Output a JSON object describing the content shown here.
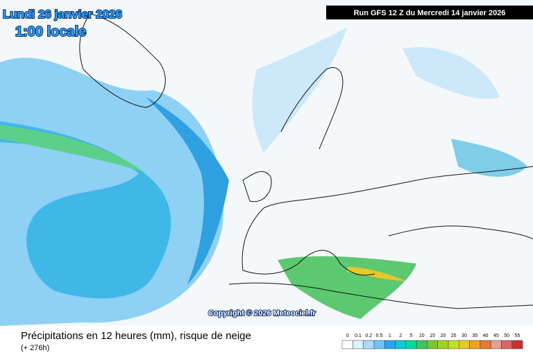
{
  "header": {
    "date": "Lundi 26 janvier 2026",
    "time": "1:00 locale"
  },
  "run": "Run GFS 12 Z du Mercredi 14 janvier 2026",
  "copyright": "Copyright © 2026 Meteociel.fr",
  "caption": {
    "title": "Précipitations en 12 heures (mm), risque de neige",
    "subtitle": "(+ 276h)"
  },
  "legend": {
    "items": [
      {
        "label": "0",
        "color": "#ffffff"
      },
      {
        "label": "0.1",
        "color": "#dcf2ff"
      },
      {
        "label": "0.2",
        "color": "#a8dcff"
      },
      {
        "label": "0.5",
        "color": "#6cc4ff"
      },
      {
        "label": "1",
        "color": "#2ea4f2"
      },
      {
        "label": "2",
        "color": "#14c8d2"
      },
      {
        "label": "5",
        "color": "#00dc9a"
      },
      {
        "label": "10",
        "color": "#3cc85a"
      },
      {
        "label": "15",
        "color": "#78c832"
      },
      {
        "label": "20",
        "color": "#a2d228"
      },
      {
        "label": "25",
        "color": "#c8dc28"
      },
      {
        "label": "30",
        "color": "#e6c828"
      },
      {
        "label": "35",
        "color": "#f0a028"
      },
      {
        "label": "40",
        "color": "#e67832"
      },
      {
        "label": "45",
        "color": "#e6a096"
      },
      {
        "label": "50",
        "color": "#dc6464"
      },
      {
        "label": "55",
        "color": "#c83232"
      }
    ]
  }
}
